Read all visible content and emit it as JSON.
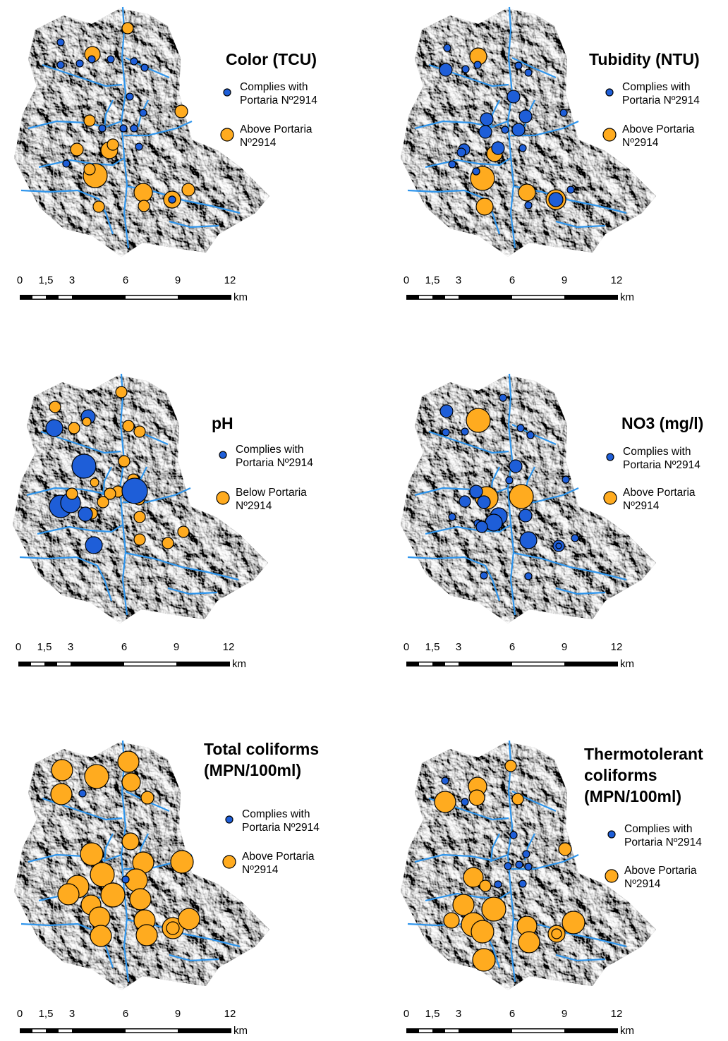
{
  "panels": [
    {
      "title": [
        "Color (TCU)"
      ],
      "legend": [
        [
          "Complies with",
          "Portaria Nº2914"
        ],
        [
          "Above Portaria",
          "Nº2914"
        ]
      ],
      "scale": {
        "labels": [
          "0",
          "1,5",
          "3",
          "6",
          "9",
          "12"
        ],
        "unit": "km"
      }
    },
    {
      "title": [
        "Tubidity (NTU)"
      ],
      "legend": [
        [
          "Complies with",
          "Portaria Nº2914"
        ],
        [
          "Above Portaria",
          "Nº2914"
        ]
      ],
      "scale": {
        "labels": [
          "0",
          "1,5",
          "3",
          "6",
          "9",
          "12"
        ],
        "unit": "km"
      }
    },
    {
      "title": [
        "pH"
      ],
      "legend": [
        [
          "Complies with",
          "Portaria Nº2914"
        ],
        [
          "Below Portaria",
          "Nº2914"
        ]
      ],
      "scale": {
        "labels": [
          "0",
          "1,5",
          "3",
          "6",
          "9",
          "12"
        ],
        "unit": "km"
      }
    },
    {
      "title": [
        "NO3 (mg/l)"
      ],
      "legend": [
        [
          "Complies with",
          "Portaria Nº2914"
        ],
        [
          "Above Portaria",
          "Nº2914"
        ]
      ],
      "scale": {
        "labels": [
          "0",
          "1,5",
          "3",
          "6",
          "9",
          "12"
        ],
        "unit": "km"
      }
    },
    {
      "title": [
        "Total coliforms",
        "(MPN/100ml)"
      ],
      "legend": [
        [
          "Complies with",
          "Portaria Nº2914"
        ],
        [
          "Above Portaria",
          "Nº2914"
        ]
      ],
      "scale": {
        "labels": [
          "0",
          "1,5",
          "3",
          "6",
          "9",
          "12"
        ],
        "unit": "km"
      }
    },
    {
      "title": [
        "Thermotolerant",
        "coliforms",
        "(MPN/100ml)"
      ],
      "legend": [
        [
          "Complies with",
          "Portaria Nº2914"
        ],
        [
          "Above Portaria",
          "Nº2914"
        ]
      ],
      "scale": {
        "labels": [
          "0",
          "1,5",
          "3",
          "6",
          "9",
          "12"
        ],
        "unit": "km"
      }
    }
  ]
}
